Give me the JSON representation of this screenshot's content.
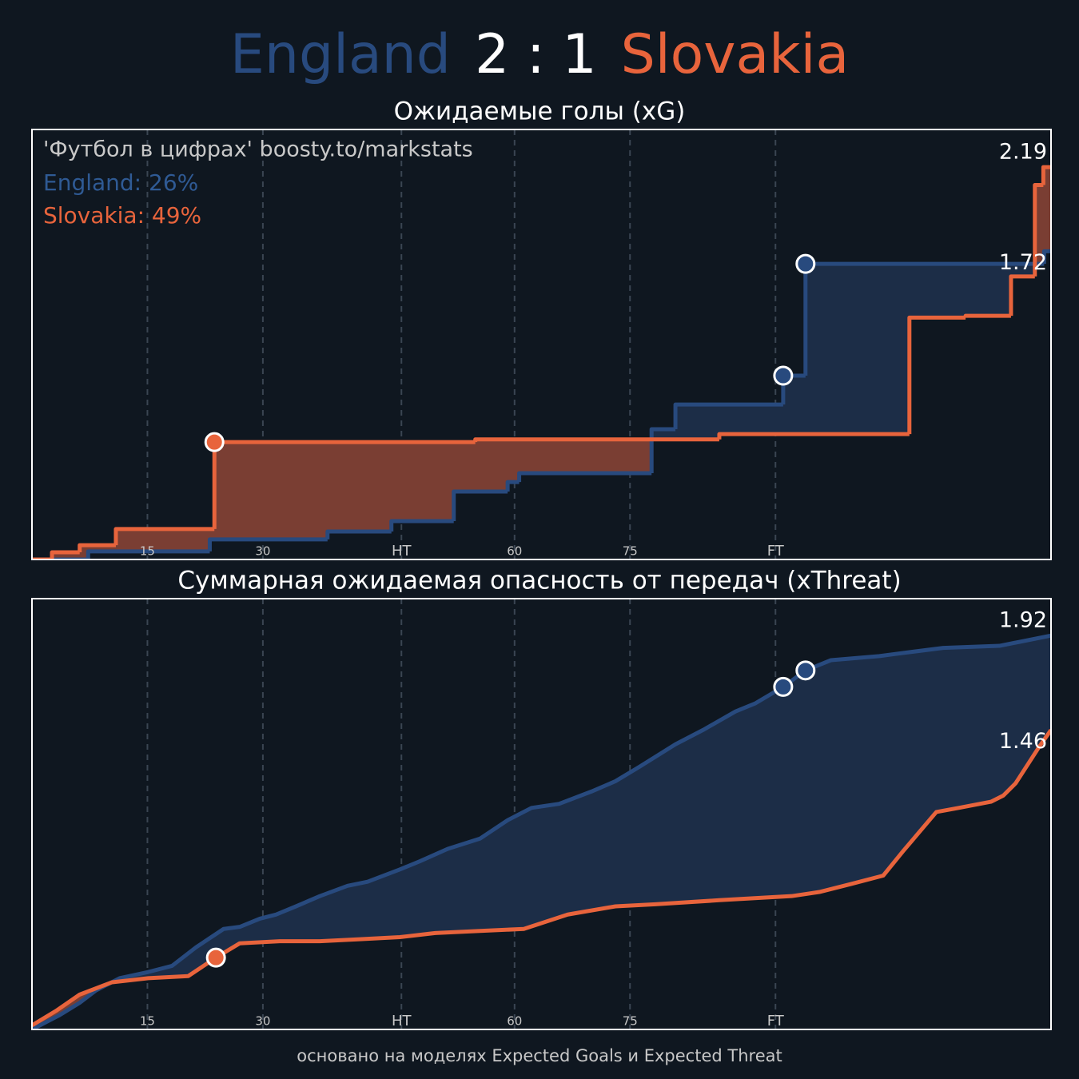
{
  "header": {
    "home": "England",
    "score": "2 : 1",
    "away": "Slovakia"
  },
  "footer": "основано на моделях Expected Goals и Expected Threat",
  "chart_data": [
    {
      "type": "line",
      "step": true,
      "title": "Ожидаемые голы (xG)",
      "source": "'Футбол в цифрах' boosty.to/markstats",
      "annotations": [
        "England: 26%",
        "Slovakia: 49%"
      ],
      "xlim": [
        0,
        132.4
      ],
      "ylim": [
        0,
        2.4
      ],
      "xticks": [
        15,
        30,
        {
          "value": 48,
          "label": "HT"
        },
        {
          "value": 62.7,
          "label": "60"
        },
        {
          "value": 77.7,
          "label": "75"
        },
        {
          "value": 96.6,
          "label": "FT"
        }
      ],
      "grid": true,
      "series": [
        {
          "name": "England",
          "color": "#284a7e",
          "fill": "#1c2d47",
          "x": [
            0,
            7.3,
            23.1,
            38.4,
            46.7,
            54.8,
            61.8,
            63.3,
            80.5,
            83.6,
            97.6,
            100.5,
            131.5
          ],
          "values": [
            0,
            0.045,
            0.112,
            0.156,
            0.214,
            0.379,
            0.432,
            0.482,
            0.727,
            0.865,
            1.026,
            1.65,
            1.72
          ],
          "goals": [
            10,
            11
          ]
        },
        {
          "name": "Slovakia",
          "color": "#e8643c",
          "fill": "#7a3e33",
          "x": [
            0,
            2.6,
            6.2,
            10.9,
            23.7,
            57.6,
            89.3,
            114.0,
            121.3,
            127.2,
            130.3,
            131.4
          ],
          "values": [
            0,
            0.04,
            0.08,
            0.17,
            0.655,
            0.67,
            0.7,
            1.35,
            1.36,
            1.58,
            2.09,
            2.19
          ],
          "goals": [
            4
          ]
        }
      ]
    },
    {
      "type": "line",
      "step": false,
      "title": "Суммарная ожидаемая опасность от передач (xThreat)",
      "xlim": [
        0,
        132.4
      ],
      "ylim": [
        0,
        2.1
      ],
      "xticks": [
        15,
        30,
        {
          "value": 48,
          "label": "HT"
        },
        {
          "value": 62.7,
          "label": "60"
        },
        {
          "value": 77.7,
          "label": "75"
        },
        {
          "value": 96.6,
          "label": "FT"
        }
      ],
      "grid": true,
      "series": [
        {
          "name": "England",
          "color": "#284a7e",
          "fill": "#1c2d47",
          "x": [
            0,
            3.6,
            6.2,
            8.3,
            11.4,
            15.1,
            18.2,
            21.3,
            24.9,
            27.0,
            29.6,
            31.7,
            34.3,
            37.4,
            41.0,
            43.6,
            47.8,
            50.4,
            54.0,
            58.2,
            61.8,
            64.9,
            68.5,
            72.7,
            75.8,
            78.9,
            83.6,
            87.2,
            91.4,
            94.0,
            97.6,
            100.5,
            103.8,
            110.1,
            112.1,
            118.4,
            125.7,
            132.4
          ],
          "values": [
            0,
            0.07,
            0.13,
            0.19,
            0.25,
            0.28,
            0.31,
            0.4,
            0.49,
            0.5,
            0.54,
            0.56,
            0.6,
            0.65,
            0.7,
            0.72,
            0.78,
            0.82,
            0.88,
            0.93,
            1.02,
            1.08,
            1.1,
            1.16,
            1.21,
            1.28,
            1.39,
            1.46,
            1.55,
            1.59,
            1.67,
            1.75,
            1.8,
            1.82,
            1.83,
            1.86,
            1.87,
            1.92
          ],
          "goals": [
            30,
            31
          ]
        },
        {
          "name": "Slovakia",
          "color": "#e8643c",
          "fill": "#7a3e33",
          "x": [
            0,
            3.1,
            6.2,
            10.4,
            15.1,
            20.3,
            23.9,
            27.0,
            32.2,
            37.4,
            42.6,
            47.8,
            52.4,
            58.2,
            63.9,
            69.6,
            75.8,
            81.0,
            89.3,
            98.7,
            102.3,
            106.5,
            110.6,
            113.2,
            117.5,
            120.4,
            124.6,
            126.2,
            127.8,
            130.9,
            132.4
          ],
          "values": [
            0.02,
            0.09,
            0.17,
            0.23,
            0.25,
            0.26,
            0.35,
            0.42,
            0.43,
            0.43,
            0.44,
            0.45,
            0.47,
            0.48,
            0.49,
            0.56,
            0.6,
            0.61,
            0.63,
            0.65,
            0.67,
            0.71,
            0.75,
            0.87,
            1.06,
            1.08,
            1.11,
            1.14,
            1.2,
            1.38,
            1.46
          ],
          "goals": [
            6
          ]
        }
      ]
    }
  ]
}
